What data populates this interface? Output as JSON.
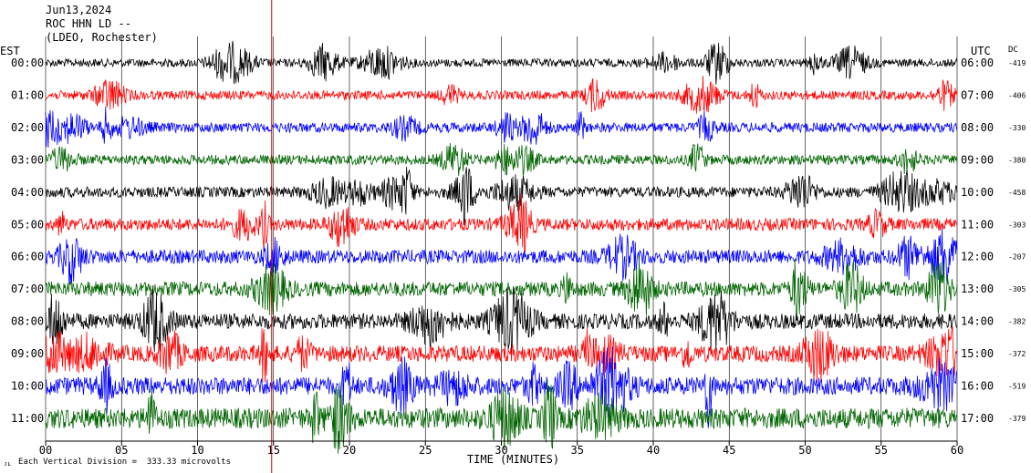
{
  "header": {
    "date": "Jun13,2024",
    "station": "ROC HHN LD --",
    "network": "(LDEO, Rochester)",
    "left_timezone": "EST",
    "right_timezone": "UTC",
    "dc_label": "DC"
  },
  "footer": {
    "scale_note": "Each Vertical Division =  333.33 microvolts",
    "corner_mark": "ᴊʟ"
  },
  "colors": {
    "trace_cycle": [
      "#000000",
      "#ff0000",
      "#0000ff",
      "#006400"
    ],
    "event_marker": "#d40000",
    "grid": "#000000"
  },
  "chart_data": {
    "type": "line",
    "title": "",
    "xlabel": "TIME (MINUTES)",
    "ylabel": "",
    "xlim": [
      0,
      60
    ],
    "x_ticks": [
      "00",
      "05",
      "10",
      "15",
      "20",
      "25",
      "30",
      "35",
      "40",
      "45",
      "50",
      "55",
      "60"
    ],
    "event_marker_minute": 15,
    "rows": [
      {
        "est": "00:00",
        "utc": "06:00",
        "dc": "-419",
        "color": "#000000",
        "amplitude": 0.5
      },
      {
        "est": "01:00",
        "utc": "07:00",
        "dc": "-406",
        "color": "#ff0000",
        "amplitude": 0.55
      },
      {
        "est": "02:00",
        "utc": "08:00",
        "dc": "-330",
        "color": "#0000ff",
        "amplitude": 0.6
      },
      {
        "est": "03:00",
        "utc": "09:00",
        "dc": "-380",
        "color": "#006400",
        "amplitude": 0.6
      },
      {
        "est": "04:00",
        "utc": "10:00",
        "dc": "-458",
        "color": "#000000",
        "amplitude": 0.65
      },
      {
        "est": "05:00",
        "utc": "11:00",
        "dc": "-303",
        "color": "#ff0000",
        "amplitude": 0.75
      },
      {
        "est": "06:00",
        "utc": "12:00",
        "dc": "-207",
        "color": "#0000ff",
        "amplitude": 0.85
      },
      {
        "est": "07:00",
        "utc": "13:00",
        "dc": "-305",
        "color": "#006400",
        "amplitude": 0.9
      },
      {
        "est": "08:00",
        "utc": "14:00",
        "dc": "-382",
        "color": "#000000",
        "amplitude": 0.95
      },
      {
        "est": "09:00",
        "utc": "15:00",
        "dc": "-372",
        "color": "#ff0000",
        "amplitude": 1.0
      },
      {
        "est": "10:00",
        "utc": "16:00",
        "dc": "-519",
        "color": "#0000ff",
        "amplitude": 1.1
      },
      {
        "est": "11:00",
        "utc": "17:00",
        "dc": "-379",
        "color": "#006400",
        "amplitude": 1.25
      }
    ]
  }
}
